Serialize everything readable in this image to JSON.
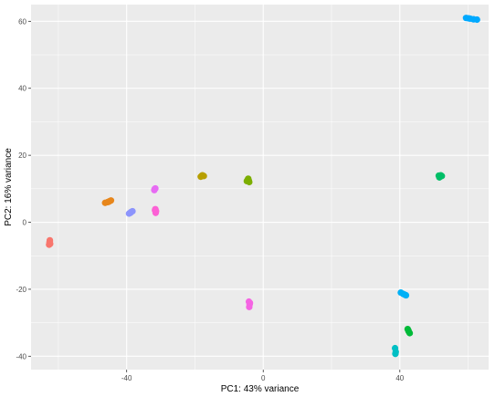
{
  "chart_data": {
    "type": "scatter",
    "title": "",
    "xlabel": "PC1: 43% variance",
    "ylabel": "PC2: 16% variance",
    "xlim": [
      -68,
      66
    ],
    "ylim": [
      -44,
      65
    ],
    "xticks": [
      -40,
      0,
      40
    ],
    "yticks": [
      -40,
      -20,
      0,
      20,
      40,
      60
    ],
    "grid": true,
    "legend": "none",
    "panel_color": "#ebebeb",
    "grid_color": "#ffffff",
    "series": [
      {
        "color": "#f8766d",
        "points": [
          [
            -62.5,
            -5.6
          ],
          [
            -62.6,
            -6.0
          ],
          [
            -62.4,
            -6.4
          ],
          [
            -62.7,
            -6.7
          ],
          [
            -62.5,
            -5.4
          ]
        ]
      },
      {
        "color": "#e7861b",
        "points": [
          [
            -46.3,
            5.8
          ],
          [
            -45.6,
            6.0
          ],
          [
            -45.0,
            6.3
          ],
          [
            -44.6,
            6.5
          ],
          [
            -45.3,
            6.1
          ]
        ]
      },
      {
        "color": "#8c94fc",
        "points": [
          [
            -39.3,
            2.6
          ],
          [
            -38.8,
            3.0
          ],
          [
            -38.3,
            3.3
          ],
          [
            -38.9,
            2.8
          ]
        ]
      },
      {
        "color": "#fc61d5",
        "points": [
          [
            -31.6,
            3.9
          ],
          [
            -31.4,
            3.3
          ],
          [
            -31.5,
            2.8
          ],
          [
            -31.7,
            3.6
          ]
        ]
      },
      {
        "color": "#e76bf3",
        "points": [
          [
            -31.9,
            9.6
          ],
          [
            -31.6,
            10.1
          ],
          [
            -31.8,
            9.9
          ]
        ]
      },
      {
        "color": "#b79f00",
        "points": [
          [
            -18.3,
            13.6
          ],
          [
            -17.8,
            14.0
          ],
          [
            -17.4,
            13.8
          ],
          [
            -18.0,
            13.9
          ]
        ]
      },
      {
        "color": "#7cae00",
        "points": [
          [
            -4.8,
            12.3
          ],
          [
            -4.4,
            13.0
          ],
          [
            -4.1,
            12.0
          ],
          [
            -4.6,
            12.6
          ],
          [
            -4.2,
            12.4
          ]
        ]
      },
      {
        "color": "#f564e3",
        "points": [
          [
            -4.2,
            -23.7
          ],
          [
            -4.0,
            -24.5
          ],
          [
            -4.1,
            -25.3
          ],
          [
            -3.9,
            -24.1
          ]
        ]
      },
      {
        "color": "#00be67",
        "points": [
          [
            51.4,
            13.9
          ],
          [
            52.0,
            14.0
          ],
          [
            51.6,
            13.4
          ],
          [
            52.3,
            13.8
          ]
        ]
      },
      {
        "color": "#00bfc4",
        "points": [
          [
            38.6,
            -37.6
          ],
          [
            38.8,
            -38.7
          ],
          [
            38.7,
            -39.3
          ]
        ]
      },
      {
        "color": "#00b0f6",
        "points": [
          [
            40.3,
            -21.0
          ],
          [
            41.0,
            -21.4
          ],
          [
            41.8,
            -21.8
          ],
          [
            41.4,
            -21.6
          ]
        ]
      },
      {
        "color": "#00a9ff",
        "points": [
          [
            59.4,
            61.0
          ],
          [
            60.6,
            60.8
          ],
          [
            61.6,
            60.6
          ],
          [
            62.6,
            60.5
          ],
          [
            60.1,
            60.9
          ]
        ]
      },
      {
        "color": "#00ba38",
        "points": [
          [
            42.3,
            -31.9
          ],
          [
            42.6,
            -32.6
          ],
          [
            42.9,
            -33.1
          ],
          [
            42.5,
            -32.3
          ]
        ]
      }
    ]
  }
}
